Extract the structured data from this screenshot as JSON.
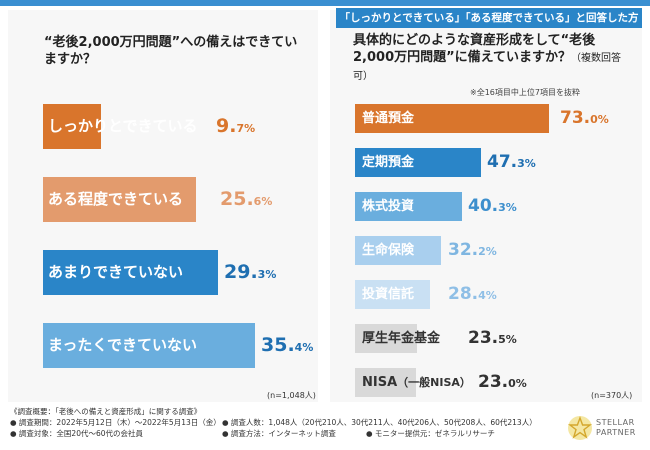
{
  "right_banner": "「しっかりとできている」「ある程度できている」と回答した方に調査",
  "chart_data": [
    {
      "type": "bar",
      "title": "“老後2,000万円問題”への備えはできていますか？",
      "sample_size": "(n=1,048人)",
      "unit": "%",
      "max": 35.4,
      "categories": [
        "しっかりとできている",
        "ある程度できている",
        "あまりできていない",
        "まったくできていない"
      ],
      "values": [
        9.7,
        25.6,
        29.3,
        35.4
      ],
      "bar_colors": [
        "#d9752c",
        "#e39b6d",
        "#2a85c8",
        "#6aaede"
      ],
      "label_colors": [
        "#d9752c",
        "#e39b6d",
        "#1f6fb1",
        "#1f6fb1"
      ]
    },
    {
      "type": "bar",
      "title": "具体的にどのような資産形成をして“老後2,000万円問題”に備えていますか？",
      "subtitle": "（複数回答可）",
      "note": "※全16項目中上位7項目を抜粋",
      "sample_size": "(n=370人)",
      "unit": "%",
      "max": 73.0,
      "categories": [
        "普通預金",
        "定期預金",
        "株式投資",
        "生命保険",
        "投資信託",
        "厚生年金基金",
        "NISA"
      ],
      "category_notes": [
        "",
        "",
        "",
        "",
        "",
        "",
        "（一般NISA）"
      ],
      "values": [
        73.0,
        47.3,
        40.3,
        32.2,
        28.4,
        23.5,
        23.0
      ],
      "bar_colors": [
        "#d9752c",
        "#2a85c8",
        "#6aaede",
        "#a9cfee",
        "#c9e0f3",
        "#d9d9d9",
        "#d9d9d9"
      ],
      "label_colors": [
        "#d9752c",
        "#1f6fb1",
        "#3d8fcd",
        "#7fb6e1",
        "#8fbfe6",
        "#333333",
        "#333333"
      ]
    }
  ],
  "footer": {
    "overview": "《調査概要：「老後への備えと資産形成」に関する調査》",
    "period": "● 調査期間：2022年5月12日（木）～2022年5月13日（金）",
    "target": "● 調査対象：全国20代～60代の会社員",
    "count": "● 調査人数：1,048人（20代210人、30代211人、40代206人、50代208人、60代213人）",
    "method": "● 調査方法：インターネット調査",
    "provider": "● モニター提供元：ゼネラルリサーチ"
  },
  "logo": {
    "line1": "STELLAR",
    "line2": "PARTNER"
  }
}
